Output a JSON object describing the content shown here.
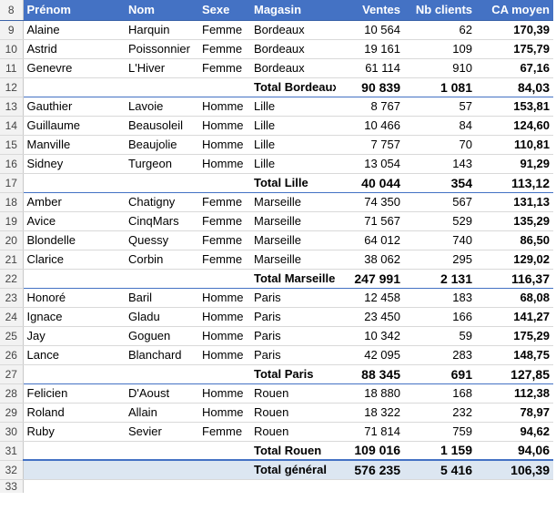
{
  "headers": {
    "row": "8",
    "prenom": "Prénom",
    "nom": "Nom",
    "sexe": "Sexe",
    "magasin": "Magasin",
    "ventes": "Ventes",
    "nb_clients": "Nb clients",
    "ca_moyen": "CA moyen"
  },
  "rows": [
    {
      "row": "9",
      "prenom": "Alaine",
      "nom": "Harquin",
      "sexe": "Femme",
      "magasin": "Bordeaux",
      "ventes": "10 564",
      "clients": "62",
      "ca": "170,39"
    },
    {
      "row": "10",
      "prenom": "Astrid",
      "nom": "Poissonnier",
      "sexe": "Femme",
      "magasin": "Bordeaux",
      "ventes": "19 161",
      "clients": "109",
      "ca": "175,79"
    },
    {
      "row": "11",
      "prenom": "Genevre",
      "nom": "L'Hiver",
      "sexe": "Femme",
      "magasin": "Bordeaux",
      "ventes": "61 114",
      "clients": "910",
      "ca": "67,16"
    },
    {
      "row": "12",
      "label": "Total Bordeaux",
      "ventes": "90 839",
      "clients": "1 081",
      "ca": "84,03",
      "subtotal": true
    },
    {
      "row": "13",
      "prenom": "Gauthier",
      "nom": "Lavoie",
      "sexe": "Homme",
      "magasin": "Lille",
      "ventes": "8 767",
      "clients": "57",
      "ca": "153,81"
    },
    {
      "row": "14",
      "prenom": "Guillaume",
      "nom": "Beausoleil",
      "sexe": "Homme",
      "magasin": "Lille",
      "ventes": "10 466",
      "clients": "84",
      "ca": "124,60"
    },
    {
      "row": "15",
      "prenom": "Manville",
      "nom": "Beaujolie",
      "sexe": "Homme",
      "magasin": "Lille",
      "ventes": "7 757",
      "clients": "70",
      "ca": "110,81"
    },
    {
      "row": "16",
      "prenom": "Sidney",
      "nom": "Turgeon",
      "sexe": "Homme",
      "magasin": "Lille",
      "ventes": "13 054",
      "clients": "143",
      "ca": "91,29"
    },
    {
      "row": "17",
      "label": "Total Lille",
      "ventes": "40 044",
      "clients": "354",
      "ca": "113,12",
      "subtotal": true
    },
    {
      "row": "18",
      "prenom": "Amber",
      "nom": "Chatigny",
      "sexe": "Femme",
      "magasin": "Marseille",
      "ventes": "74 350",
      "clients": "567",
      "ca": "131,13"
    },
    {
      "row": "19",
      "prenom": "Avice",
      "nom": "CinqMars",
      "sexe": "Femme",
      "magasin": "Marseille",
      "ventes": "71 567",
      "clients": "529",
      "ca": "135,29"
    },
    {
      "row": "20",
      "prenom": "Blondelle",
      "nom": "Quessy",
      "sexe": "Femme",
      "magasin": "Marseille",
      "ventes": "64 012",
      "clients": "740",
      "ca": "86,50"
    },
    {
      "row": "21",
      "prenom": "Clarice",
      "nom": "Corbin",
      "sexe": "Femme",
      "magasin": "Marseille",
      "ventes": "38 062",
      "clients": "295",
      "ca": "129,02"
    },
    {
      "row": "22",
      "label": "Total Marseille",
      "ventes": "247 991",
      "clients": "2 131",
      "ca": "116,37",
      "subtotal": true
    },
    {
      "row": "23",
      "prenom": "Honoré",
      "nom": "Baril",
      "sexe": "Homme",
      "magasin": "Paris",
      "ventes": "12 458",
      "clients": "183",
      "ca": "68,08"
    },
    {
      "row": "24",
      "prenom": "Ignace",
      "nom": "Gladu",
      "sexe": "Homme",
      "magasin": "Paris",
      "ventes": "23 450",
      "clients": "166",
      "ca": "141,27"
    },
    {
      "row": "25",
      "prenom": "Jay",
      "nom": "Goguen",
      "sexe": "Homme",
      "magasin": "Paris",
      "ventes": "10 342",
      "clients": "59",
      "ca": "175,29"
    },
    {
      "row": "26",
      "prenom": "Lance",
      "nom": "Blanchard",
      "sexe": "Homme",
      "magasin": "Paris",
      "ventes": "42 095",
      "clients": "283",
      "ca": "148,75"
    },
    {
      "row": "27",
      "label": "Total Paris",
      "ventes": "88 345",
      "clients": "691",
      "ca": "127,85",
      "subtotal": true
    },
    {
      "row": "28",
      "prenom": "Felicien",
      "nom": "D'Aoust",
      "sexe": "Homme",
      "magasin": "Rouen",
      "ventes": "18 880",
      "clients": "168",
      "ca": "112,38"
    },
    {
      "row": "29",
      "prenom": "Roland",
      "nom": "Allain",
      "sexe": "Homme",
      "magasin": "Rouen",
      "ventes": "18 322",
      "clients": "232",
      "ca": "78,97"
    },
    {
      "row": "30",
      "prenom": "Ruby",
      "nom": "Sevier",
      "sexe": "Femme",
      "magasin": "Rouen",
      "ventes": "71 814",
      "clients": "759",
      "ca": "94,62"
    },
    {
      "row": "31",
      "label": "Total Rouen",
      "ventes": "109 016",
      "clients": "1 159",
      "ca": "94,06",
      "subtotal": true
    },
    {
      "row": "32",
      "label": "Total général",
      "ventes": "576 235",
      "clients": "5 416",
      "ca": "106,39",
      "grand": true
    }
  ],
  "trailing_row": "33",
  "colors": {
    "header_bg": "#4472c4",
    "header_text": "#ffffff",
    "grand_total_bg": "#dce6f1",
    "row_header_bg": "#f2f2f2"
  }
}
